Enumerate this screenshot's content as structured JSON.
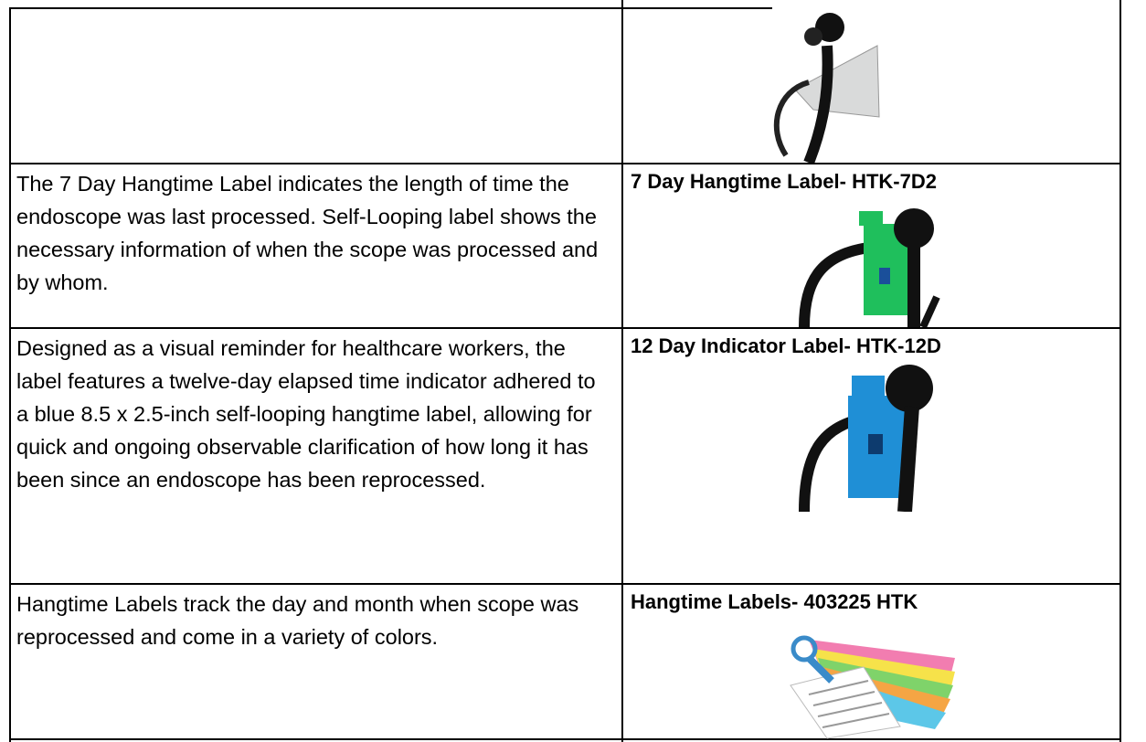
{
  "table": {
    "rows": [
      {
        "description": "The 7 Day Hangtime Label indicates the length of time the endoscope was last processed.  Self-Looping label shows the necessary information of when the scope was processed and by whom.",
        "title": "7 Day Hangtime Label- HTK-7D2"
      },
      {
        "description": "Designed as a visual reminder for healthcare workers, the label features a twelve-day elapsed time indicator adhered to a blue 8.5 x 2.5-inch self-looping hangtime label, allowing for quick and ongoing observable clarification of how long it has been since an endoscope has been reprocessed.",
        "title": "12 Day Indicator Label- HTK-12D"
      },
      {
        "description": "Hangtime Labels track the day and month when scope was reprocessed and come in a variety of colors.",
        "title": "Hangtime Labels- 403225 HTK"
      }
    ]
  }
}
